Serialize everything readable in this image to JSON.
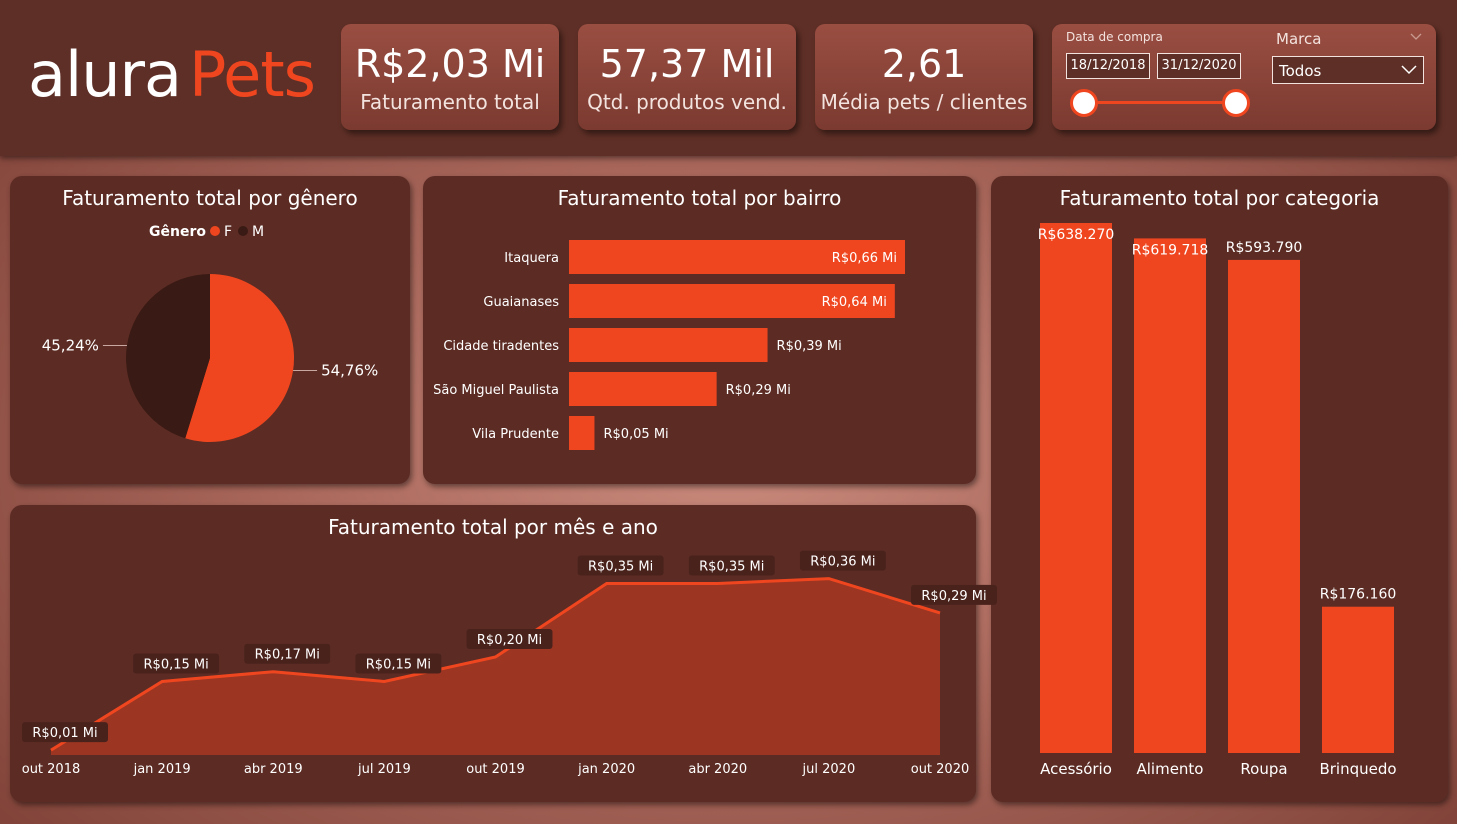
{
  "logo": {
    "part1": "alura",
    "part2": "Pets"
  },
  "kpis": [
    {
      "value": "R$2,03 Mi",
      "label": "Faturamento total"
    },
    {
      "value": "57,37 Mil",
      "label": "Qtd. produtos vend."
    },
    {
      "value": "2,61",
      "label": "Média pets / clientes"
    }
  ],
  "filters": {
    "date_label": "Data de compra",
    "date_start": "18/12/2018",
    "date_end": "31/12/2020",
    "brand_label": "Marca",
    "brand_value": "Todos"
  },
  "colors": {
    "accent": "#f0461f",
    "dark": "#3a1a14",
    "panel": "#5c2c24",
    "area": "#9c3522"
  },
  "chart_data": [
    {
      "type": "pie",
      "title": "Faturamento total por gênero",
      "legend_title": "Gênero",
      "categories": [
        "F",
        "M"
      ],
      "values": [
        54.76,
        45.24
      ],
      "labels": [
        "54,76%",
        "45,24%"
      ]
    },
    {
      "type": "bar",
      "orientation": "horizontal",
      "title": "Faturamento total por bairro",
      "categories": [
        "Itaquera",
        "Guaianases",
        "Cidade tiradentes",
        "São Miguel Paulista",
        "Vila Prudente"
      ],
      "values": [
        0.66,
        0.64,
        0.39,
        0.29,
        0.05
      ],
      "labels": [
        "R$0,66 Mi",
        "R$0,64 Mi",
        "R$0,39 Mi",
        "R$0,29 Mi",
        "R$0,05 Mi"
      ]
    },
    {
      "type": "bar",
      "title": "Faturamento total por categoria",
      "categories": [
        "Acessório",
        "Alimento",
        "Roupa",
        "Brinquedo"
      ],
      "values": [
        638270,
        619718,
        593790,
        176160
      ],
      "labels": [
        "R$638.270",
        "R$619.718",
        "R$593.790",
        "R$176.160"
      ]
    },
    {
      "type": "area",
      "title": "Faturamento total por mês e ano",
      "x": [
        "out 2018",
        "jan 2019",
        "abr 2019",
        "jul 2019",
        "out 2019",
        "jan 2020",
        "abr 2020",
        "jul 2020",
        "out 2020"
      ],
      "values": [
        0.01,
        0.15,
        0.17,
        0.15,
        0.2,
        0.35,
        0.35,
        0.36,
        0.29
      ],
      "labels": [
        "R$0,01 Mi",
        "R$0,15 Mi",
        "R$0,17 Mi",
        "R$0,15 Mi",
        "R$0,20 Mi",
        "R$0,35 Mi",
        "R$0,35 Mi",
        "R$0,36 Mi",
        "R$0,29 Mi"
      ]
    }
  ]
}
